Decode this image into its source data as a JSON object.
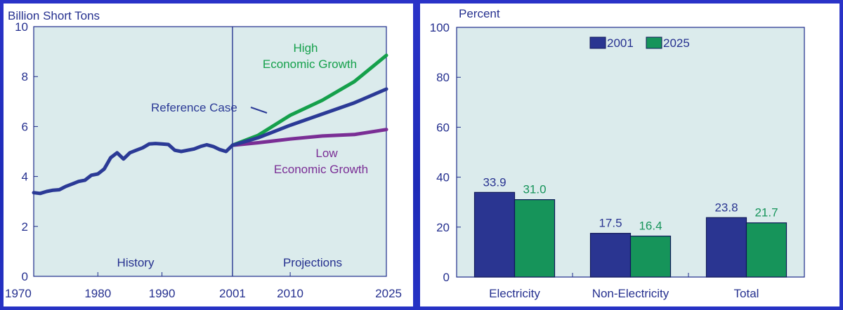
{
  "colors": {
    "plot_bg": "#dbebec",
    "axis": "#1c2a8a",
    "text_blue": "#25308f",
    "reference": "#2b3a96",
    "high": "#15a04b",
    "low": "#7a2e95",
    "bar_2001": "#2a3591",
    "bar_2025": "#16945a"
  },
  "chart_data": [
    {
      "type": "line",
      "ylabel": "Billion Short Tons",
      "ylim": [
        0,
        10
      ],
      "yticks": [
        "0",
        "2",
        "4",
        "6",
        "8",
        "10"
      ],
      "xlim": [
        1970,
        2025
      ],
      "xticks": [
        "1970",
        "1980",
        "1990",
        "2001",
        "2010",
        "2025"
      ],
      "region_labels": {
        "history": "History",
        "projections": "Projections"
      },
      "divider_x": 2001,
      "series": [
        {
          "name": "History",
          "color_key": "reference",
          "points": [
            [
              1970,
              3.35
            ],
            [
              1971,
              3.32
            ],
            [
              1972,
              3.4
            ],
            [
              1973,
              3.45
            ],
            [
              1974,
              3.47
            ],
            [
              1975,
              3.6
            ],
            [
              1976,
              3.7
            ],
            [
              1977,
              3.8
            ],
            [
              1978,
              3.85
            ],
            [
              1979,
              4.05
            ],
            [
              1980,
              4.1
            ],
            [
              1981,
              4.3
            ],
            [
              1982,
              4.75
            ],
            [
              1983,
              4.95
            ],
            [
              1984,
              4.7
            ],
            [
              1985,
              4.95
            ],
            [
              1986,
              5.05
            ],
            [
              1987,
              5.15
            ],
            [
              1988,
              5.3
            ],
            [
              1989,
              5.32
            ],
            [
              1990,
              5.3
            ],
            [
              1991,
              5.28
            ],
            [
              1992,
              5.05
            ],
            [
              1993,
              5.0
            ],
            [
              1994,
              5.05
            ],
            [
              1995,
              5.1
            ],
            [
              1996,
              5.2
            ],
            [
              1997,
              5.27
            ],
            [
              1998,
              5.2
            ],
            [
              1999,
              5.08
            ],
            [
              2000,
              5.0
            ],
            [
              2001,
              5.25
            ]
          ]
        },
        {
          "name": "Reference Case",
          "color_key": "reference",
          "points": [
            [
              2001,
              5.25
            ],
            [
              2005,
              5.55
            ],
            [
              2010,
              6.05
            ],
            [
              2015,
              6.5
            ],
            [
              2020,
              6.95
            ],
            [
              2025,
              7.5
            ]
          ]
        },
        {
          "name": "High Economic Growth",
          "color_key": "high",
          "points": [
            [
              2001,
              5.25
            ],
            [
              2005,
              5.65
            ],
            [
              2010,
              6.45
            ],
            [
              2015,
              7.05
            ],
            [
              2020,
              7.8
            ],
            [
              2025,
              8.85
            ]
          ]
        },
        {
          "name": "Low Economic Growth",
          "color_key": "low",
          "points": [
            [
              2001,
              5.25
            ],
            [
              2005,
              5.35
            ],
            [
              2010,
              5.5
            ],
            [
              2015,
              5.62
            ],
            [
              2020,
              5.68
            ],
            [
              2025,
              5.88
            ]
          ]
        }
      ],
      "annotations": {
        "reference": "Reference Case",
        "high_line1": "High",
        "high_line2": "Economic Growth",
        "low_line1": "Low",
        "low_line2": "Economic Growth"
      }
    },
    {
      "type": "bar",
      "ylabel": "Percent",
      "ylim": [
        0,
        100
      ],
      "yticks": [
        "0",
        "20",
        "40",
        "60",
        "80",
        "100"
      ],
      "categories": [
        "Electricity",
        "Non-Electricity",
        "Total"
      ],
      "series": [
        {
          "name": "2001",
          "color_key": "bar_2001",
          "values": [
            33.9,
            17.5,
            23.8
          ],
          "labels": [
            "33.9",
            "17.5",
            "23.8"
          ]
        },
        {
          "name": "2025",
          "color_key": "bar_2025",
          "values": [
            31.0,
            16.4,
            21.7
          ],
          "labels": [
            "31.0",
            "16.4",
            "21.7"
          ]
        }
      ],
      "legend": "top-center"
    }
  ]
}
